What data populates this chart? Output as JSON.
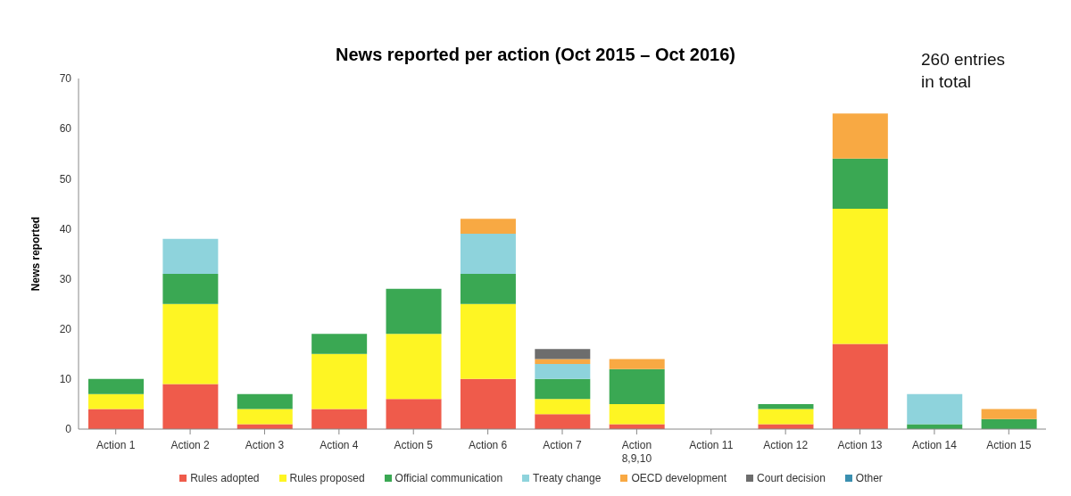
{
  "chart_data": {
    "type": "bar",
    "title": "News reported per action (Oct 2015 – Oct 2016)",
    "ylabel": "News reported",
    "annotations": [
      "260 entries in total"
    ],
    "categories": [
      "Action 1",
      "Action 2",
      "Action 3",
      "Action 4",
      "Action 5",
      "Action 6",
      "Action 7",
      "Action 8,9,10",
      "Action 11",
      "Action 12",
      "Action 13",
      "Action 14",
      "Action 15"
    ],
    "stacked": true,
    "ylim": [
      0,
      70
    ],
    "yticks": [
      0,
      10,
      20,
      30,
      40,
      50,
      60,
      70
    ],
    "grid": false,
    "legend": "bottom",
    "series": [
      {
        "name": "Rules adopted",
        "color": "#ef5b4b",
        "values": [
          4,
          9,
          1,
          4,
          6,
          10,
          3,
          1,
          0,
          1,
          17,
          0,
          0
        ]
      },
      {
        "name": "Rules proposed",
        "color": "#fef523",
        "values": [
          3,
          16,
          3,
          11,
          13,
          15,
          3,
          4,
          0,
          3,
          27,
          0,
          0
        ]
      },
      {
        "name": "Official communication",
        "color": "#3aa853",
        "values": [
          3,
          6,
          3,
          4,
          9,
          6,
          4,
          7,
          0,
          1,
          10,
          1,
          2
        ]
      },
      {
        "name": "Treaty change",
        "color": "#8ed3dc",
        "values": [
          0,
          7,
          0,
          0,
          0,
          8,
          3,
          0,
          0,
          0,
          0,
          6,
          0
        ]
      },
      {
        "name": "OECD development",
        "color": "#f8a943",
        "values": [
          0,
          0,
          0,
          0,
          0,
          3,
          1,
          2,
          0,
          0,
          9,
          0,
          2
        ]
      },
      {
        "name": "Court decision",
        "color": "#6d6d6d",
        "values": [
          0,
          0,
          0,
          0,
          0,
          0,
          2,
          0,
          0,
          0,
          0,
          0,
          0
        ]
      },
      {
        "name": "Other",
        "color": "#3a8fb0",
        "values": [
          0,
          0,
          0,
          0,
          0,
          0,
          0,
          0,
          0,
          0,
          0,
          0,
          0
        ]
      }
    ]
  }
}
